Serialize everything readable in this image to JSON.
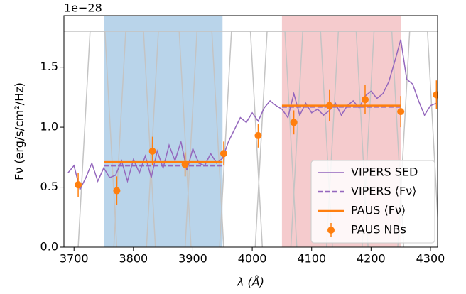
{
  "chart_data": {
    "type": "line",
    "offset_label": "1e−28",
    "xlabel": "λ (Å)",
    "ylabel": "Fν (erg/s/cm²/Hz)",
    "xlim": [
      3683,
      4312
    ],
    "ylim": [
      0,
      1.93
    ],
    "xticks": [
      3700,
      3800,
      3900,
      4000,
      4100,
      4200,
      4300
    ],
    "yticks": [
      {
        "value": 0,
        "label": "0.0"
      },
      {
        "value": 0.5,
        "label": "0.5"
      },
      {
        "value": 1,
        "label": "1.0"
      },
      {
        "value": 1.5,
        "label": "1.5"
      }
    ],
    "legend": "lower right",
    "bands": [
      {
        "x": [
          3750,
          3950
        ],
        "color": "#7fb0d8"
      },
      {
        "x": [
          4050,
          4250
        ],
        "color": "#eda0a4"
      }
    ],
    "filter_color": "#c4c4c4",
    "filters": [
      {
        "x": [
          3642,
          3662,
          3752,
          3772
        ],
        "values": [
          0,
          1.8,
          1.8,
          0
        ]
      },
      {
        "x": [
          3707,
          3727,
          3817,
          3837
        ],
        "values": [
          0,
          1.8,
          1.8,
          0
        ]
      },
      {
        "x": [
          3767,
          3787,
          3877,
          3897
        ],
        "values": [
          0,
          1.8,
          1.8,
          0
        ]
      },
      {
        "x": [
          3822,
          3842,
          3932,
          3952
        ],
        "values": [
          0,
          1.8,
          1.8,
          0
        ]
      },
      {
        "x": [
          3887,
          3907,
          3997,
          4017
        ],
        "values": [
          0,
          1.8,
          1.8,
          0
        ]
      },
      {
        "x": [
          3945,
          3965,
          4055,
          4075
        ],
        "values": [
          0,
          1.8,
          1.8,
          0
        ]
      },
      {
        "x": [
          4005,
          4025,
          4115,
          4135
        ],
        "values": [
          0,
          1.8,
          1.8,
          0
        ]
      },
      {
        "x": [
          4065,
          4085,
          4175,
          4195
        ],
        "values": [
          0,
          1.8,
          1.8,
          0
        ]
      },
      {
        "x": [
          4125,
          4145,
          4235,
          4255
        ],
        "values": [
          0,
          1.8,
          1.8,
          0
        ]
      },
      {
        "x": [
          4185,
          4205,
          4295,
          4315
        ],
        "values": [
          0,
          1.8,
          1.8,
          0
        ]
      },
      {
        "x": [
          4245,
          4265,
          4355,
          4375
        ],
        "values": [
          0,
          1.8,
          1.8,
          0
        ]
      }
    ],
    "series": [
      {
        "name": "VIPERS SED",
        "color": "#9467bd",
        "style": "line",
        "x": [
          3690,
          3700,
          3710,
          3720,
          3730,
          3740,
          3750,
          3760,
          3770,
          3780,
          3790,
          3800,
          3810,
          3820,
          3830,
          3840,
          3850,
          3860,
          3870,
          3880,
          3890,
          3900,
          3910,
          3920,
          3930,
          3940,
          3950,
          3960,
          3970,
          3980,
          3990,
          4000,
          4010,
          4020,
          4030,
          4040,
          4050,
          4060,
          4070,
          4080,
          4090,
          4100,
          4110,
          4120,
          4130,
          4140,
          4150,
          4160,
          4170,
          4180,
          4190,
          4200,
          4210,
          4220,
          4230,
          4240,
          4250,
          4260,
          4270,
          4280,
          4290,
          4300,
          4310
        ],
        "values": [
          0.62,
          0.68,
          0.48,
          0.58,
          0.7,
          0.55,
          0.66,
          0.58,
          0.6,
          0.72,
          0.55,
          0.73,
          0.62,
          0.76,
          0.58,
          0.8,
          0.66,
          0.85,
          0.72,
          0.88,
          0.64,
          0.82,
          0.7,
          0.68,
          0.78,
          0.7,
          0.74,
          0.88,
          0.98,
          1.08,
          1.04,
          1.12,
          1.05,
          1.16,
          1.22,
          1.18,
          1.15,
          1.08,
          1.28,
          1.1,
          1.2,
          1.12,
          1.15,
          1.1,
          1.14,
          1.2,
          1.1,
          1.18,
          1.22,
          1.16,
          1.26,
          1.3,
          1.24,
          1.28,
          1.38,
          1.55,
          1.73,
          1.4,
          1.36,
          1.22,
          1.1,
          1.18,
          1.2
        ]
      },
      {
        "name": "VIPERS ⟨Fν⟩",
        "color": "#9467bd",
        "style": "dashed",
        "x": [
          3750,
          3950,
          4000,
          4050,
          4250
        ],
        "values": [
          0.68,
          0.68,
          null,
          1.17,
          1.17
        ]
      },
      {
        "name": "PAUS ⟨Fν⟩",
        "color": "#ff7f0e",
        "style": "solid",
        "x": [
          3750,
          3950,
          4000,
          4050,
          4250
        ],
        "values": [
          0.71,
          0.71,
          null,
          1.18,
          1.18
        ]
      },
      {
        "name": "PAUS NBs",
        "color": "#ff7f0e",
        "style": "errorbar",
        "x": [
          3707,
          3772,
          3832,
          3887,
          3952,
          4010,
          4070,
          4130,
          4190,
          4250,
          4310
        ],
        "values": [
          0.52,
          0.47,
          0.8,
          0.69,
          0.78,
          0.93,
          1.04,
          1.18,
          1.23,
          1.13,
          1.27
        ],
        "errors": [
          0.1,
          0.12,
          0.12,
          0.1,
          0.1,
          0.1,
          0.1,
          0.13,
          0.12,
          0.13,
          0.12
        ]
      }
    ]
  }
}
